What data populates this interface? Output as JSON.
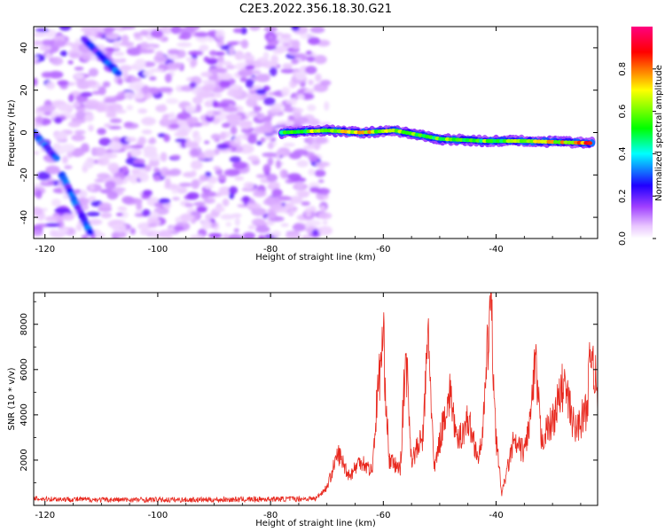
{
  "title": "C2E3.2022.356.18.30.G21",
  "chart_data": [
    {
      "type": "heatmap",
      "xlabel": "Height of straight line (km)",
      "ylabel": "Frequency (Hz)",
      "xlim": [
        -122,
        -22
      ],
      "ylim": [
        -50,
        50
      ],
      "xticks": [
        -120,
        -100,
        -80,
        -60,
        -40
      ],
      "yticks": [
        -40,
        -20,
        0,
        20,
        40
      ],
      "colorbar": {
        "label": "Normalized spectral amplitude",
        "range": [
          0,
          1
        ],
        "ticks": [
          "0.0",
          "0.2",
          "0.4",
          "0.6",
          "0.8"
        ],
        "colors": [
          "#ffffff",
          "#e8c4ff",
          "#a040ff",
          "#2000ff",
          "#00ffff",
          "#00ff00",
          "#ffff00",
          "#ff0000",
          "#ff0080"
        ]
      },
      "features": {
        "noise_region_km": [
          -122,
          -70
        ],
        "tone_band": [
          {
            "x": -78,
            "y": 0,
            "amp": 0.55
          },
          {
            "x": -70,
            "y": 1,
            "amp": 0.7
          },
          {
            "x": -64,
            "y": 0,
            "amp": 0.75
          },
          {
            "x": -58,
            "y": 1,
            "amp": 0.65
          },
          {
            "x": -50,
            "y": -3,
            "amp": 0.6
          },
          {
            "x": -42,
            "y": -4,
            "amp": 0.6
          },
          {
            "x": -35,
            "y": -4,
            "amp": 0.65
          },
          {
            "x": -23,
            "y": -5,
            "amp": 0.85
          }
        ],
        "diagonal_tracks": [
          {
            "from": [
              -122,
              0
            ],
            "to": [
              -118,
              -12
            ]
          },
          {
            "from": [
              -117,
              -20
            ],
            "to": [
              -112,
              -47
            ]
          },
          {
            "from": [
              -113,
              44
            ],
            "to": [
              -107,
              28
            ]
          }
        ]
      }
    },
    {
      "type": "line",
      "xlabel": "Height of straight line (km)",
      "ylabel": "SNR (10 * v/v)",
      "xlim": [
        -122,
        -22
      ],
      "ylim": [
        0,
        9400
      ],
      "xticks": [
        -120,
        -100,
        -80,
        -60,
        -40
      ],
      "yticks": [
        2000,
        4000,
        6000,
        8000
      ],
      "color": "#e8281e",
      "control_points": [
        {
          "x": -122,
          "y": 300
        },
        {
          "x": -110,
          "y": 250
        },
        {
          "x": -90,
          "y": 250
        },
        {
          "x": -72,
          "y": 300
        },
        {
          "x": -70,
          "y": 800
        },
        {
          "x": -68,
          "y": 2300
        },
        {
          "x": -66,
          "y": 1300
        },
        {
          "x": -64,
          "y": 2000
        },
        {
          "x": -62,
          "y": 1500
        },
        {
          "x": -61,
          "y": 5000
        },
        {
          "x": -60,
          "y": 7400
        },
        {
          "x": -59,
          "y": 2000
        },
        {
          "x": -57,
          "y": 1600
        },
        {
          "x": -56,
          "y": 6800
        },
        {
          "x": -55,
          "y": 2000
        },
        {
          "x": -53,
          "y": 3000
        },
        {
          "x": -52,
          "y": 7700
        },
        {
          "x": -51,
          "y": 1500
        },
        {
          "x": -49,
          "y": 4200
        },
        {
          "x": -48,
          "y": 5000
        },
        {
          "x": -47,
          "y": 2700
        },
        {
          "x": -45,
          "y": 3800
        },
        {
          "x": -43,
          "y": 2000
        },
        {
          "x": -42,
          "y": 4500
        },
        {
          "x": -41,
          "y": 9300
        },
        {
          "x": -40,
          "y": 3000
        },
        {
          "x": -39,
          "y": 500
        },
        {
          "x": -37,
          "y": 2700
        },
        {
          "x": -35,
          "y": 2400
        },
        {
          "x": -34,
          "y": 3700
        },
        {
          "x": -33,
          "y": 6200
        },
        {
          "x": -32,
          "y": 2900
        },
        {
          "x": -30,
          "y": 3700
        },
        {
          "x": -28,
          "y": 5400
        },
        {
          "x": -26,
          "y": 3300
        },
        {
          "x": -24,
          "y": 4200
        },
        {
          "x": -23,
          "y": 7200
        },
        {
          "x": -22,
          "y": 4500
        }
      ]
    }
  ]
}
